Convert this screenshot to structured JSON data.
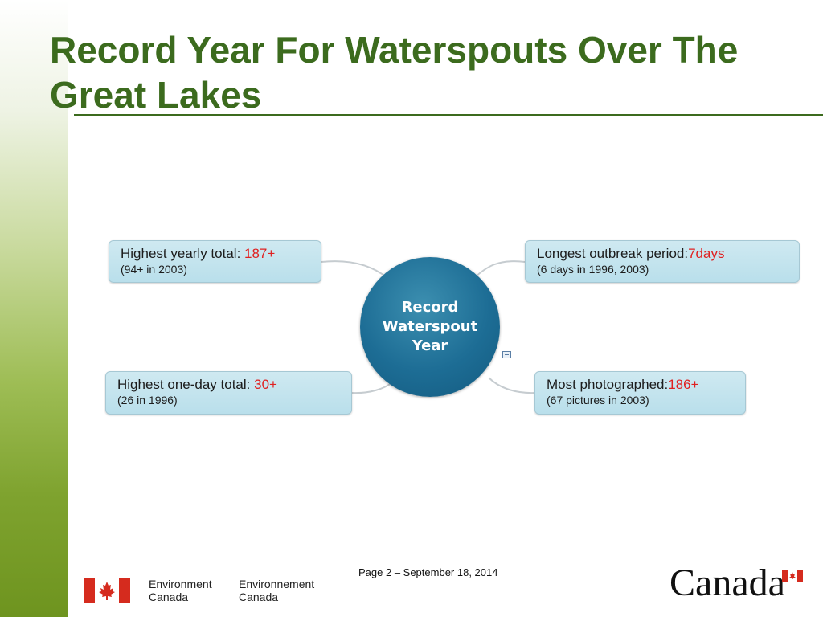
{
  "slide": {
    "title": "Record Year For Waterspouts Over The Great Lakes"
  },
  "diagram": {
    "center": "Record Waterspout Year",
    "topics": [
      {
        "label": "Highest yearly total: ",
        "value": "187+",
        "detail": "(94+ in 2003)"
      },
      {
        "label": "Longest outbreak period:",
        "value": "7days",
        "detail": "(6 days in 1996, 2003)"
      },
      {
        "label": "Highest one-day total: ",
        "value": "30+",
        "detail": "(26 in 1996)"
      },
      {
        "label": "Most photographed:",
        "value": "186+",
        "detail": "(67 pictures in 2003)"
      }
    ]
  },
  "footer": {
    "page": "Page 2 – September 18, 2014",
    "dept_en_1": "Environment",
    "dept_en_2": "Canada",
    "dept_fr_1": "Environnement",
    "dept_fr_2": "Canada",
    "wordmark": "Canada"
  },
  "colors": {
    "title": "#3c6b1e",
    "value_highlight": "#e02020",
    "center_node": "#1d6d95",
    "topic_fill": "#c4e4ee",
    "flag_red": "#d52b1e"
  }
}
